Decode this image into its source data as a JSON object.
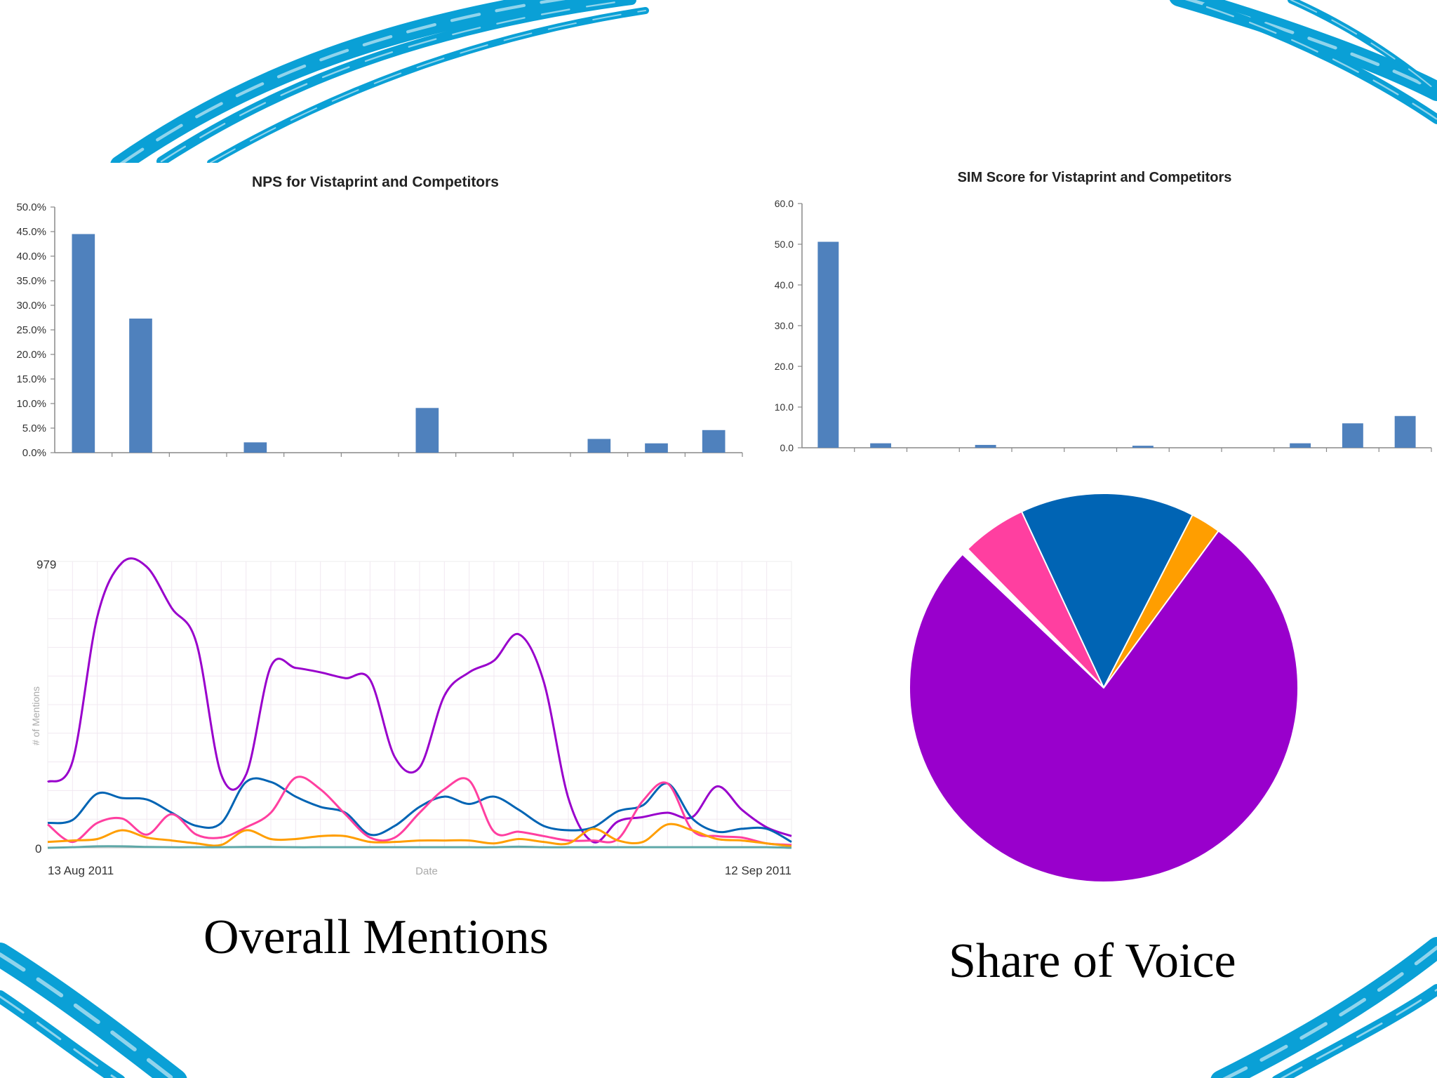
{
  "colors": {
    "brush": "#0aa0d6",
    "bar": "#4f81bd",
    "purple": "#9900cc",
    "blue": "#0064b4",
    "pink": "#ff3fa0",
    "orange": "#ff9e00",
    "teal": "#5fa8a8"
  },
  "captions": {
    "mentions": "Overall Mentions",
    "share": "Share of Voice"
  },
  "chart_data": [
    {
      "type": "bar",
      "title": "NPS for Vistaprint and Competitors",
      "ylim": [
        0,
        50
      ],
      "y_tick_labels": [
        "0.0%",
        "5.0%",
        "10.0%",
        "15.0%",
        "20.0%",
        "25.0%",
        "30.0%",
        "35.0%",
        "40.0%",
        "45.0%",
        "50.0%"
      ],
      "values": [
        44.5,
        27.3,
        0,
        2.1,
        0,
        0,
        9.1,
        0,
        0,
        2.8,
        1.9,
        4.6
      ],
      "grid": false
    },
    {
      "type": "bar",
      "title": "SIM Score for Vistaprint and Competitors",
      "ylim": [
        0,
        60
      ],
      "y_tick_labels": [
        "0.0",
        "10.0",
        "20.0",
        "30.0",
        "40.0",
        "50.0",
        "60.0"
      ],
      "values": [
        50.6,
        1.1,
        0,
        0.7,
        0,
        0,
        0.5,
        0,
        0,
        1.1,
        6.0,
        7.8
      ],
      "grid": false
    },
    {
      "type": "line",
      "ylabel": "# of Mentions",
      "xlabel": "Date",
      "x_tick_labels": [
        "13 Aug 2011",
        "12 Sep 2011"
      ],
      "y_tick_labels": [
        "0",
        "979"
      ],
      "ylim": [
        0,
        979
      ],
      "days": 31,
      "grid": true,
      "series": [
        {
          "color": "purple",
          "values": [
            225,
            295,
            790,
            975,
            960,
            820,
            700,
            250,
            250,
            620,
            615,
            600,
            580,
            575,
            310,
            275,
            520,
            600,
            640,
            730,
            570,
            170,
            20,
            90,
            105,
            120,
            105,
            210,
            130,
            70,
            40
          ]
        },
        {
          "color": "blue",
          "values": [
            85,
            95,
            185,
            170,
            165,
            120,
            75,
            85,
            225,
            225,
            175,
            140,
            120,
            45,
            75,
            140,
            175,
            150,
            175,
            130,
            75,
            60,
            70,
            125,
            145,
            220,
            100,
            55,
            65,
            65,
            20
          ]
        },
        {
          "color": "pink",
          "values": [
            80,
            20,
            85,
            100,
            45,
            115,
            45,
            35,
            70,
            120,
            240,
            200,
            115,
            35,
            35,
            120,
            200,
            230,
            55,
            55,
            40,
            25,
            25,
            30,
            160,
            220,
            60,
            40,
            35,
            15,
            10
          ]
        },
        {
          "color": "orange",
          "values": [
            20,
            25,
            30,
            60,
            35,
            25,
            15,
            10,
            60,
            30,
            30,
            40,
            40,
            20,
            20,
            25,
            25,
            25,
            15,
            30,
            20,
            15,
            65,
            25,
            20,
            80,
            60,
            30,
            25,
            15,
            5
          ]
        },
        {
          "color": "teal",
          "values": [
            0,
            2,
            5,
            5,
            3,
            2,
            2,
            2,
            3,
            3,
            2,
            2,
            2,
            2,
            2,
            2,
            2,
            2,
            2,
            4,
            2,
            2,
            2,
            2,
            2,
            2,
            2,
            2,
            2,
            2,
            0
          ]
        }
      ]
    },
    {
      "type": "pie",
      "slices": [
        {
          "color": "blue",
          "percent": 14.5
        },
        {
          "color": "orange",
          "percent": 2.5
        },
        {
          "color": "purple",
          "percent": 77.0
        },
        {
          "color": "white",
          "percent": 0.6
        },
        {
          "color": "pink",
          "percent": 5.4
        }
      ]
    }
  ]
}
